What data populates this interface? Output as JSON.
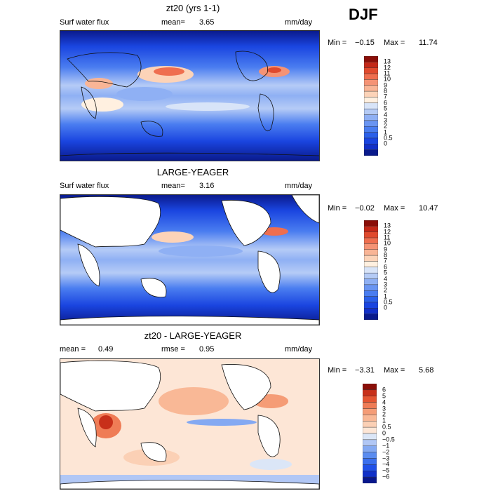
{
  "season": "DJF",
  "colors": {
    "land": "#ffffff",
    "coast": "#111111",
    "abs_scale": [
      "#0a1a8c",
      "#1230c8",
      "#1a45e0",
      "#2b60ea",
      "#4a7df0",
      "#6a95f2",
      "#8fb0f4",
      "#b5cbf6",
      "#d8e4f8",
      "#fff0e0",
      "#fcd3b8",
      "#f9b596",
      "#f59375",
      "#ef6e4f",
      "#e04a2e",
      "#c42818",
      "#8a0e08"
    ],
    "diff_scale": [
      "#08168c",
      "#1030c8",
      "#2050e8",
      "#3a6fee",
      "#5a8cf0",
      "#84a9f2",
      "#b1c7f5",
      "#dbe6f7",
      "#fde6d6",
      "#fbd0b5",
      "#f9b896",
      "#f59c76",
      "#ef7c56",
      "#e45532",
      "#c8301a",
      "#8a0e08"
    ]
  },
  "panels": [
    {
      "title": "zt20 (yrs 1-1)",
      "left_label": "Surf water flux",
      "stat1_label": "mean=",
      "stat1_value": "3.65",
      "stat2_label": "",
      "stat2_value": "",
      "units": "mm/day",
      "min_label": "Min =",
      "min_value": "−0.15",
      "max_label": "Max =",
      "max_value": "11.74",
      "colorbar_ticks": [
        "13",
        "12",
        "11",
        "10",
        "9",
        "8",
        "7",
        "6",
        "5",
        "4",
        "3",
        "2",
        "1",
        "0.5",
        "0"
      ]
    },
    {
      "title": "LARGE-YEAGER",
      "left_label": "Surf water flux",
      "stat1_label": "mean=",
      "stat1_value": "3.16",
      "stat2_label": "",
      "stat2_value": "",
      "units": "mm/day",
      "min_label": "Min =",
      "min_value": "−0.02",
      "max_label": "Max =",
      "max_value": "10.47",
      "colorbar_ticks": [
        "13",
        "12",
        "11",
        "10",
        "9",
        "8",
        "7",
        "6",
        "5",
        "4",
        "3",
        "2",
        "1",
        "0.5",
        "0"
      ]
    },
    {
      "title": "zt20 - LARGE-YEAGER",
      "left_label": "",
      "stat1_label": "mean =",
      "stat1_value": "0.49",
      "stat2_label": "rmse =",
      "stat2_value": "0.95",
      "units": "mm/day",
      "min_label": "Min =",
      "min_value": "−3.31",
      "max_label": "Max =",
      "max_value": "5.68",
      "colorbar_ticks": [
        "6",
        "5",
        "4",
        "3",
        "2",
        "1",
        "0.5",
        "0",
        "−0.5",
        "−1",
        "−2",
        "−3",
        "−4",
        "−5",
        "−6"
      ]
    }
  ]
}
